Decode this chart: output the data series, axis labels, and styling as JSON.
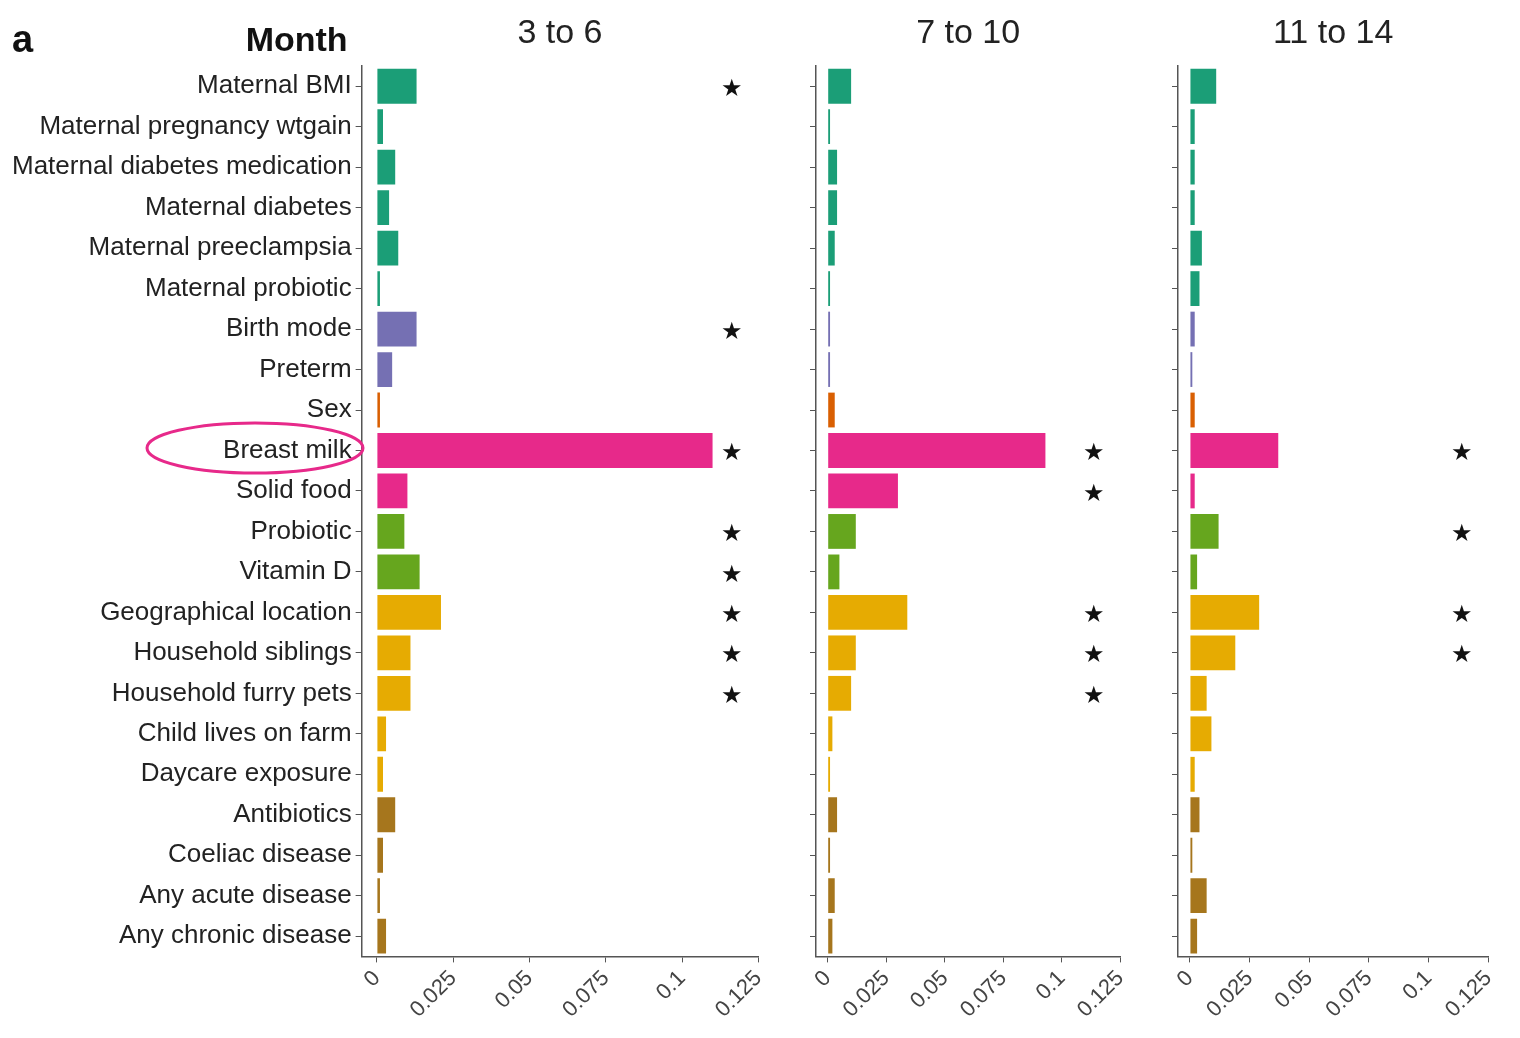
{
  "chart_data": [
    {
      "type": "bar",
      "orientation": "horizontal",
      "title": "3 to 6",
      "categories": [
        "Maternal BMI",
        "Maternal pregnancy wtgain",
        "Maternal diabetes medication",
        "Maternal diabetes",
        "Maternal preeclampsia",
        "Maternal probiotic",
        "Birth mode",
        "Preterm",
        "Sex",
        "Breast milk",
        "Solid food",
        "Probiotic",
        "Vitamin D",
        "Geographical location",
        "Household siblings",
        "Household furry pets",
        "Child lives on farm",
        "Daycare exposure",
        "Antibiotics",
        "Coeliac disease",
        "Any acute disease",
        "Any chronic disease"
      ],
      "values": [
        0.013,
        0.002,
        0.006,
        0.004,
        0.007,
        0.001,
        0.013,
        0.005,
        0.001,
        0.11,
        0.01,
        0.009,
        0.014,
        0.021,
        0.011,
        0.011,
        0.003,
        0.002,
        0.006,
        0.002,
        0.001,
        0.003
      ],
      "colors": [
        "#1b9e77",
        "#1b9e77",
        "#1b9e77",
        "#1b9e77",
        "#1b9e77",
        "#1b9e77",
        "#7570b3",
        "#7570b3",
        "#d95f02",
        "#e7298a",
        "#e7298a",
        "#66a61e",
        "#66a61e",
        "#e6ab02",
        "#e6ab02",
        "#e6ab02",
        "#e6ab02",
        "#e6ab02",
        "#a6761d",
        "#a6761d",
        "#a6761d",
        "#a6761d"
      ],
      "xlim": [
        -0.005,
        0.125
      ],
      "xticks": [
        0,
        0.025,
        0.05,
        0.075,
        0.1,
        0.125
      ],
      "grid": false,
      "annotations": [
        "a",
        "Month"
      ],
      "value_labels": [
        "★",
        null,
        null,
        null,
        null,
        null,
        "★",
        null,
        null,
        "★",
        null,
        "★",
        "★",
        "★",
        "★",
        "★",
        null,
        null,
        null,
        null,
        null,
        null
      ]
    },
    {
      "type": "bar",
      "orientation": "horizontal",
      "title": "7 to 10",
      "categories": [
        null,
        null,
        null,
        null,
        null,
        null,
        null,
        null,
        null,
        null,
        null,
        null,
        null,
        null,
        null,
        null,
        null,
        null,
        null,
        null,
        null,
        null
      ],
      "values": [
        0.01,
        0.001,
        0.004,
        0.004,
        0.003,
        0.001,
        0.001,
        0.001,
        0.003,
        0.093,
        0.03,
        0.012,
        0.005,
        0.034,
        0.012,
        0.01,
        0.002,
        0.001,
        0.004,
        0.001,
        0.003,
        0.002
      ],
      "colors": [
        "#1b9e77",
        "#1b9e77",
        "#1b9e77",
        "#1b9e77",
        "#1b9e77",
        "#1b9e77",
        "#7570b3",
        "#7570b3",
        "#d95f02",
        "#e7298a",
        "#e7298a",
        "#66a61e",
        "#66a61e",
        "#e6ab02",
        "#e6ab02",
        "#e6ab02",
        "#e6ab02",
        "#e6ab02",
        "#a6761d",
        "#a6761d",
        "#a6761d",
        "#a6761d"
      ],
      "xlim": [
        -0.005,
        0.125
      ],
      "xticks": [
        0,
        0.025,
        0.05,
        0.075,
        0.1,
        0.125
      ],
      "grid": false,
      "tick_labels": "x",
      "value_labels": [
        null,
        null,
        null,
        null,
        null,
        null,
        null,
        null,
        null,
        "★",
        "★",
        null,
        null,
        "★",
        "★",
        "★",
        null,
        null,
        null,
        null,
        null,
        null
      ]
    },
    {
      "type": "bar",
      "orientation": "horizontal",
      "title": "11 to 14",
      "categories": [
        null,
        null,
        null,
        null,
        null,
        null,
        null,
        null,
        null,
        null,
        null,
        null,
        null,
        null,
        null,
        null,
        null,
        null,
        null,
        null,
        null,
        null
      ],
      "values": [
        0.011,
        0.002,
        0.002,
        0.002,
        0.005,
        0.004,
        0.002,
        0.001,
        0.002,
        0.037,
        0.002,
        0.012,
        0.003,
        0.029,
        0.019,
        0.007,
        0.009,
        0.002,
        0.004,
        0.001,
        0.007,
        0.003
      ],
      "colors": [
        "#1b9e77",
        "#1b9e77",
        "#1b9e77",
        "#1b9e77",
        "#1b9e77",
        "#1b9e77",
        "#7570b3",
        "#7570b3",
        "#d95f02",
        "#e7298a",
        "#e7298a",
        "#66a61e",
        "#66a61e",
        "#e6ab02",
        "#e6ab02",
        "#e6ab02",
        "#e6ab02",
        "#e6ab02",
        "#a6761d",
        "#a6761d",
        "#a6761d",
        "#a6761d"
      ],
      "xlim": [
        -0.005,
        0.125
      ],
      "xticks": [
        0,
        0.025,
        0.05,
        0.075,
        0.1,
        0.125
      ],
      "grid": false,
      "tick_labels": "x",
      "value_labels": [
        null,
        null,
        null,
        null,
        null,
        null,
        null,
        null,
        null,
        "★",
        null,
        "★",
        null,
        "★",
        "★",
        null,
        null,
        null,
        null,
        null,
        null,
        null
      ]
    }
  ]
}
